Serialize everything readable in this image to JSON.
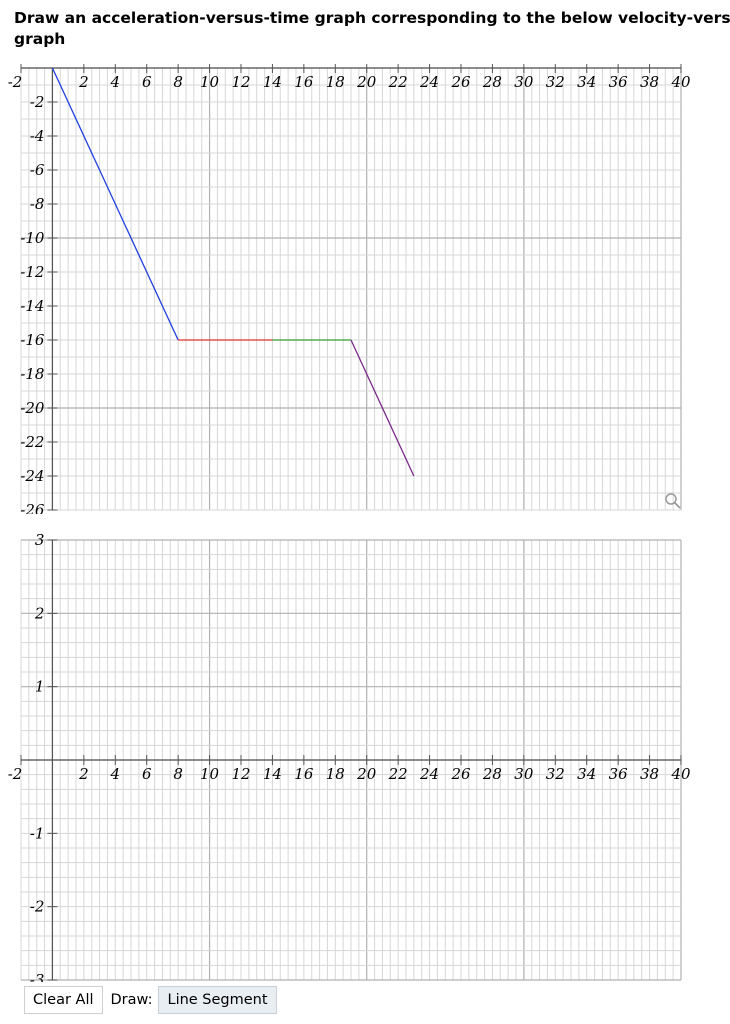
{
  "prompt": {
    "line1": "Draw an acceleration-versus-time graph corresponding to the below velocity-versus-time",
    "line2": "graph"
  },
  "toolbar": {
    "clear_label": "Clear All",
    "draw_label": "Draw:",
    "tool_label": "Line Segment"
  },
  "icons": {
    "zoom": "magnifier-icon"
  },
  "chart_data": [
    {
      "type": "line",
      "title": "",
      "xlabel": "",
      "ylabel": "",
      "xlim": [
        -2,
        40
      ],
      "ylim": [
        -26,
        0
      ],
      "grid": true,
      "x_ticks": [
        "-2",
        "2",
        "4",
        "6",
        "8",
        "10",
        "12",
        "14",
        "16",
        "18",
        "20",
        "22",
        "24",
        "26",
        "28",
        "30",
        "32",
        "34",
        "36",
        "38",
        "40"
      ],
      "y_ticks": [
        "-2",
        "-4",
        "-6",
        "-8",
        "-10",
        "-12",
        "-14",
        "-16",
        "-18",
        "-20",
        "-22",
        "-24",
        "-26"
      ],
      "segments": [
        {
          "x": [
            0,
            8
          ],
          "y": [
            0,
            -16
          ],
          "color": "#1f3fe0"
        },
        {
          "x": [
            8,
            14
          ],
          "y": [
            -16,
            -16
          ],
          "color": "#e03030"
        },
        {
          "x": [
            14,
            19
          ],
          "y": [
            -16,
            -16
          ],
          "color": "#2e9e2e"
        },
        {
          "x": [
            19,
            23
          ],
          "y": [
            -16,
            -24
          ],
          "color": "#7a2a8a"
        }
      ]
    },
    {
      "type": "line",
      "title": "",
      "xlabel": "",
      "ylabel": "",
      "xlim": [
        -2,
        40
      ],
      "ylim": [
        -3,
        3
      ],
      "grid": true,
      "x_ticks": [
        "-2",
        "2",
        "4",
        "6",
        "8",
        "10",
        "12",
        "14",
        "16",
        "18",
        "20",
        "22",
        "24",
        "26",
        "28",
        "30",
        "32",
        "34",
        "36",
        "38",
        "40"
      ],
      "y_ticks": [
        "3",
        "2",
        "1",
        "-1",
        "-2",
        "-3"
      ],
      "segments": []
    }
  ]
}
